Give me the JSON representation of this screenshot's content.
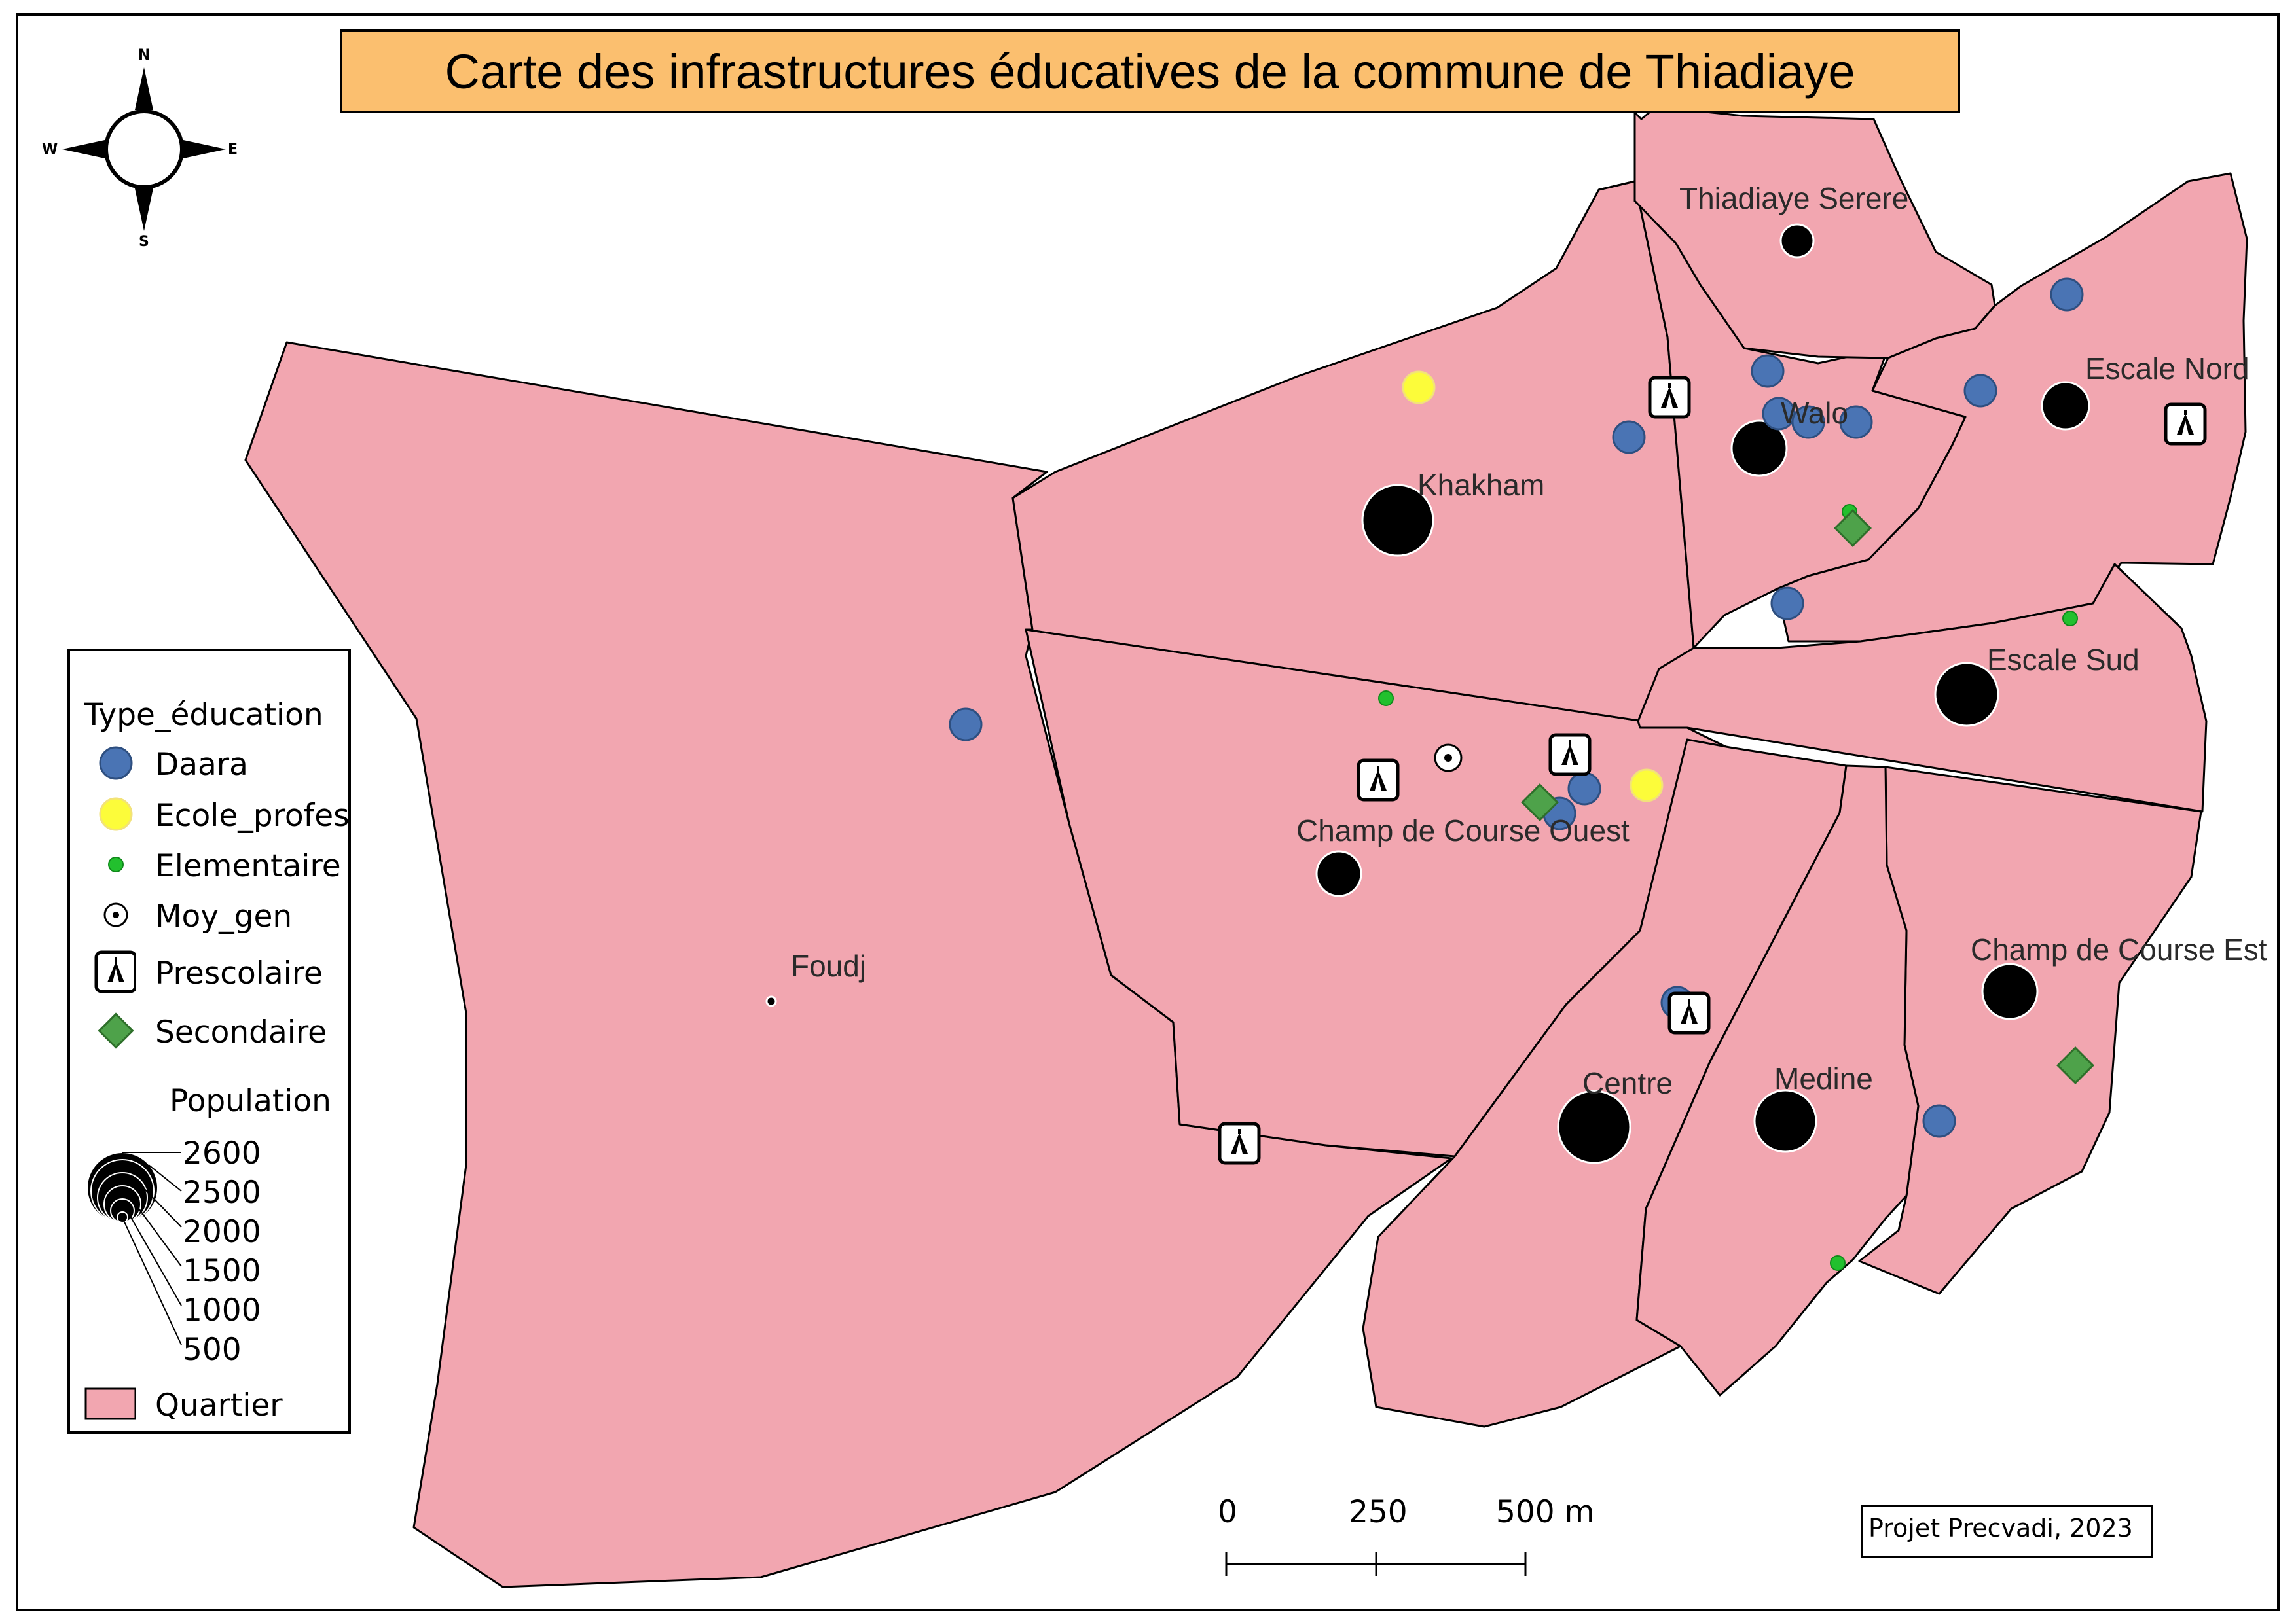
{
  "title": "Carte des infrastructures éducatives de la commune de Thiadiaye",
  "compass": {
    "n": "N",
    "s": "S",
    "e": "E",
    "w": "W"
  },
  "quartiers": [
    "Thiadiaye Serere",
    "Escale Nord",
    "Walo",
    "Khakham",
    "Escale Sud",
    "Champ de Course Ouest",
    "Foudj",
    "Champ de Course Est",
    "Centre",
    "Medine"
  ],
  "legend": {
    "type_title": "Type_éducation",
    "types": [
      {
        "label": "Daara",
        "color": "#4a74b4"
      },
      {
        "label": "Ecole_profes",
        "color": "#fcfc3a"
      },
      {
        "label": "Elementaire",
        "color": "#22c02e"
      },
      {
        "label": "Moy_gen",
        "color": "#ffffff"
      },
      {
        "label": "Prescolaire",
        "color": "#000000"
      },
      {
        "label": "Secondaire",
        "color": "#4ea24a"
      }
    ],
    "population_title": "Population",
    "population_values": [
      "2600",
      "2500",
      "2000",
      "1500",
      "1000",
      "500"
    ],
    "quartier_label": "Quartier",
    "quartier_color": "#f2a6b0"
  },
  "scale": {
    "labels": [
      "0",
      "250",
      "500 m"
    ]
  },
  "credit": "Projet Precvadi, 2023",
  "colors": {
    "quartier_fill": "#f2a6b0",
    "title_bg": "#fbbf6f",
    "daara": "#4a74b4",
    "ecole": "#fcfc3a",
    "elementaire": "#22c02e",
    "secondaire": "#4ea24a"
  }
}
